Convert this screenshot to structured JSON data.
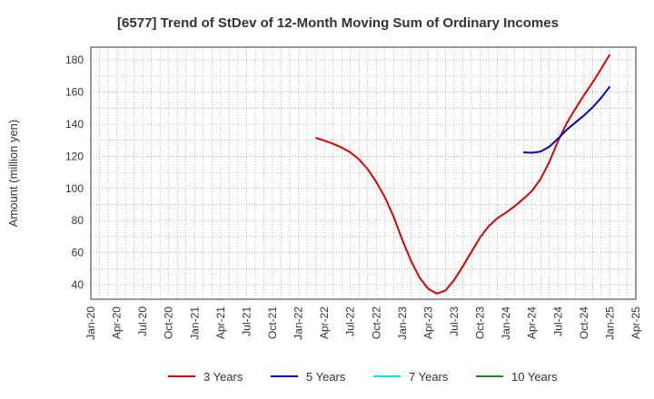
{
  "chart_data": {
    "type": "line",
    "title": "[6577]  Trend of StDev of 12-Month Moving Sum of Ordinary Incomes",
    "xlabel": "",
    "ylabel": "Amount (million yen)",
    "ylim": [
      31,
      188
    ],
    "yticks": [
      40,
      60,
      80,
      100,
      120,
      140,
      160,
      180
    ],
    "xlim": [
      "2020-01",
      "2025-04"
    ],
    "xticks": [
      "Jan-20",
      "Apr-20",
      "Jul-20",
      "Oct-20",
      "Jan-21",
      "Apr-21",
      "Jul-21",
      "Oct-21",
      "Jan-22",
      "Apr-22",
      "Jul-22",
      "Oct-22",
      "Jan-23",
      "Apr-23",
      "Jul-23",
      "Oct-23",
      "Jan-24",
      "Apr-24",
      "Jul-24",
      "Oct-24",
      "Jan-25",
      "Apr-25"
    ],
    "grid": true,
    "legend_position": "bottom",
    "series": [
      {
        "name": "3 Years",
        "color": "#dd0000",
        "points": [
          [
            "2022-03",
            131.5
          ],
          [
            "2022-04",
            129.8
          ],
          [
            "2022-05",
            127.8
          ],
          [
            "2022-06",
            125.5
          ],
          [
            "2022-07",
            122.5
          ],
          [
            "2022-08",
            118.2
          ],
          [
            "2022-09",
            112.0
          ],
          [
            "2022-10",
            104.0
          ],
          [
            "2022-11",
            94.5
          ],
          [
            "2022-12",
            82.5
          ],
          [
            "2023-01",
            68.0
          ],
          [
            "2023-02",
            55.0
          ],
          [
            "2023-03",
            44.5
          ],
          [
            "2023-04",
            37.5
          ],
          [
            "2023-05",
            34.5
          ],
          [
            "2023-06",
            36.5
          ],
          [
            "2023-07",
            43.0
          ],
          [
            "2023-08",
            51.5
          ],
          [
            "2023-09",
            60.5
          ],
          [
            "2023-10",
            69.5
          ],
          [
            "2023-11",
            76.5
          ],
          [
            "2023-12",
            81.5
          ],
          [
            "2024-01",
            85.0
          ],
          [
            "2024-02",
            89.0
          ],
          [
            "2024-03",
            93.5
          ],
          [
            "2024-04",
            98.5
          ],
          [
            "2024-05",
            106.0
          ],
          [
            "2024-06",
            116.5
          ],
          [
            "2024-07",
            129.5
          ],
          [
            "2024-08",
            140.5
          ],
          [
            "2024-09",
            149.5
          ],
          [
            "2024-10",
            158.0
          ],
          [
            "2024-11",
            166.0
          ],
          [
            "2024-12",
            174.5
          ],
          [
            "2025-01",
            183.5
          ]
        ]
      },
      {
        "name": "5 Years",
        "color": "#0000cc",
        "points": [
          [
            "2024-03",
            122.5
          ],
          [
            "2024-04",
            122.2
          ],
          [
            "2024-05",
            123.0
          ],
          [
            "2024-06",
            126.0
          ],
          [
            "2024-07",
            131.0
          ],
          [
            "2024-08",
            136.5
          ],
          [
            "2024-09",
            141.0
          ],
          [
            "2024-10",
            145.5
          ],
          [
            "2024-11",
            150.5
          ],
          [
            "2024-12",
            156.5
          ],
          [
            "2025-01",
            163.5
          ]
        ]
      },
      {
        "name": "7 Years",
        "color": "#00e5ee",
        "points": []
      },
      {
        "name": "10 Years",
        "color": "#228822",
        "points": []
      }
    ]
  }
}
